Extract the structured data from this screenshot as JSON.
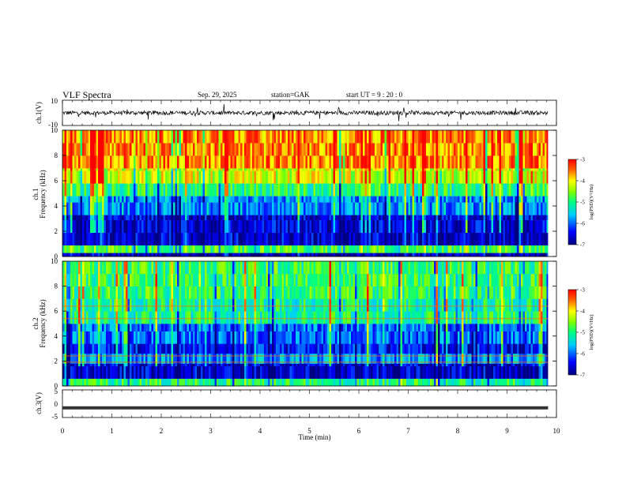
{
  "header": {
    "title": "VLF  Spectra",
    "date": "Sep. 29, 2025",
    "station": "station=GAK",
    "start_ut": "start  UT  =   9  : 20 : 0"
  },
  "colorbar": {
    "label": "log(PSD)(V²/Hz)",
    "ticks": [
      "-3",
      "-4",
      "-5",
      "-6",
      "-7"
    ],
    "range": [
      -7,
      -3
    ]
  },
  "chart_data": [
    {
      "type": "line",
      "ylabel": "ch.1(V)",
      "ylim": [
        -10,
        10
      ],
      "yticks": [
        "10",
        "-10"
      ],
      "xlim": [
        0,
        10
      ],
      "description_values": {
        "baseline": 0,
        "typical_amplitude": 2
      }
    },
    {
      "type": "heatmap",
      "ylabel_line1": "ch.1",
      "ylabel_line2": "Frequency  (kHz)",
      "ylim": [
        0,
        10
      ],
      "yticks": [
        "0",
        "2",
        "4",
        "6",
        "8",
        "10"
      ],
      "xlim": [
        0,
        9.83
      ],
      "bands": [
        {
          "from_khz": 0.0,
          "to_khz": 0.3,
          "level": -6.8
        },
        {
          "from_khz": 0.3,
          "to_khz": 0.9,
          "level": -4.8
        },
        {
          "from_khz": 0.9,
          "to_khz": 3.3,
          "level": -6.6
        },
        {
          "from_khz": 3.3,
          "to_khz": 4.8,
          "level": -5.8
        },
        {
          "from_khz": 4.8,
          "to_khz": 5.8,
          "level": -5.0
        },
        {
          "from_khz": 5.8,
          "to_khz": 7.0,
          "level": -4.2
        },
        {
          "from_khz": 7.0,
          "to_khz": 10.0,
          "level": -3.6
        }
      ]
    },
    {
      "type": "heatmap",
      "ylabel_line1": "ch.2",
      "ylabel_line2": "Frequency  (kHz)",
      "ylim": [
        0,
        10
      ],
      "yticks": [
        "0",
        "2",
        "4",
        "6",
        "8",
        "10"
      ],
      "xlim": [
        0,
        9.83
      ],
      "bands": [
        {
          "from_khz": 0.0,
          "to_khz": 0.6,
          "level": -5.0
        },
        {
          "from_khz": 0.6,
          "to_khz": 1.8,
          "level": -6.6
        },
        {
          "from_khz": 1.8,
          "to_khz": 2.6,
          "level": -5.8
        },
        {
          "from_khz": 2.6,
          "to_khz": 3.4,
          "level": -6.4
        },
        {
          "from_khz": 3.4,
          "to_khz": 5.0,
          "level": -6.0
        },
        {
          "from_khz": 5.0,
          "to_khz": 7.0,
          "level": -5.1
        },
        {
          "from_khz": 7.0,
          "to_khz": 10.0,
          "level": -4.9
        }
      ],
      "lines_khz": [
        6.4,
        5.4,
        2.4,
        1.9
      ]
    },
    {
      "type": "line",
      "ylabel": "ch.3(V)",
      "ylim": [
        -5,
        5
      ],
      "yticks": [
        "5",
        "0",
        "-5"
      ],
      "xlim": [
        0,
        10
      ],
      "value": -1.5
    }
  ],
  "x_axis": {
    "label": "Time  (min)",
    "ticks": [
      "0",
      "1",
      "2",
      "3",
      "4",
      "5",
      "6",
      "7",
      "8",
      "9",
      "10"
    ],
    "range": [
      0,
      10
    ]
  }
}
